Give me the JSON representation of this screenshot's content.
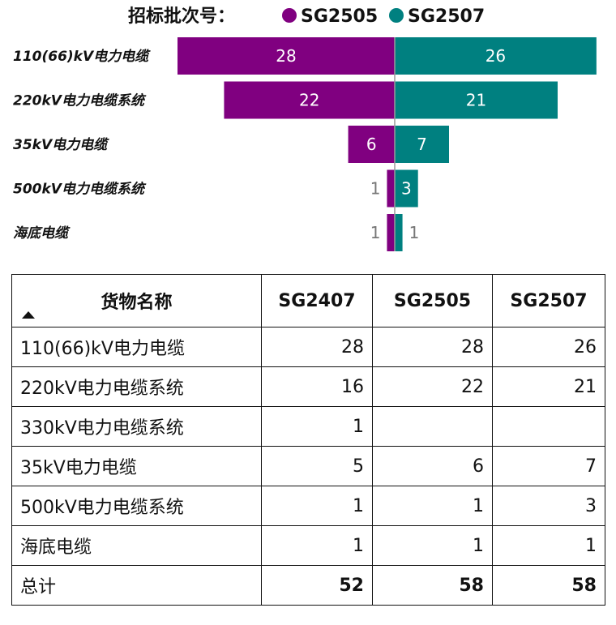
{
  "chart_data": {
    "type": "bar",
    "orientation": "horizontal-diverging",
    "legend_title": "招标批次号：",
    "categories": [
      "110(66)kV电力电缆",
      "220kV电力电缆系统",
      "35kV电力电缆",
      "500kV电力电缆系统",
      "海底电缆"
    ],
    "series": [
      {
        "name": "SG2505",
        "color": "#800080",
        "values": [
          28,
          22,
          6,
          1,
          1
        ]
      },
      {
        "name": "SG2507",
        "color": "#008080",
        "values": [
          26,
          21,
          7,
          3,
          1
        ]
      }
    ],
    "xlim": [
      0,
      28
    ]
  },
  "table": {
    "headers": [
      "货物名称",
      "SG2407",
      "SG2505",
      "SG2507"
    ],
    "rows": [
      {
        "name": "110(66)kV电力电缆",
        "v1": "28",
        "v2": "28",
        "v3": "26"
      },
      {
        "name": "220kV电力电缆系统",
        "v1": "16",
        "v2": "22",
        "v3": "21"
      },
      {
        "name": "330kV电力电缆系统",
        "v1": "1",
        "v2": "",
        "v3": ""
      },
      {
        "name": "35kV电力电缆",
        "v1": "5",
        "v2": "6",
        "v3": "7"
      },
      {
        "name": "500kV电力电缆系统",
        "v1": "1",
        "v2": "1",
        "v3": "3"
      },
      {
        "name": "海底电缆",
        "v1": "1",
        "v2": "1",
        "v3": "1"
      }
    ],
    "total": {
      "label": "总计",
      "v1": "52",
      "v2": "58",
      "v3": "58"
    }
  },
  "icons": {
    "sort": "sort-ascending-icon"
  }
}
